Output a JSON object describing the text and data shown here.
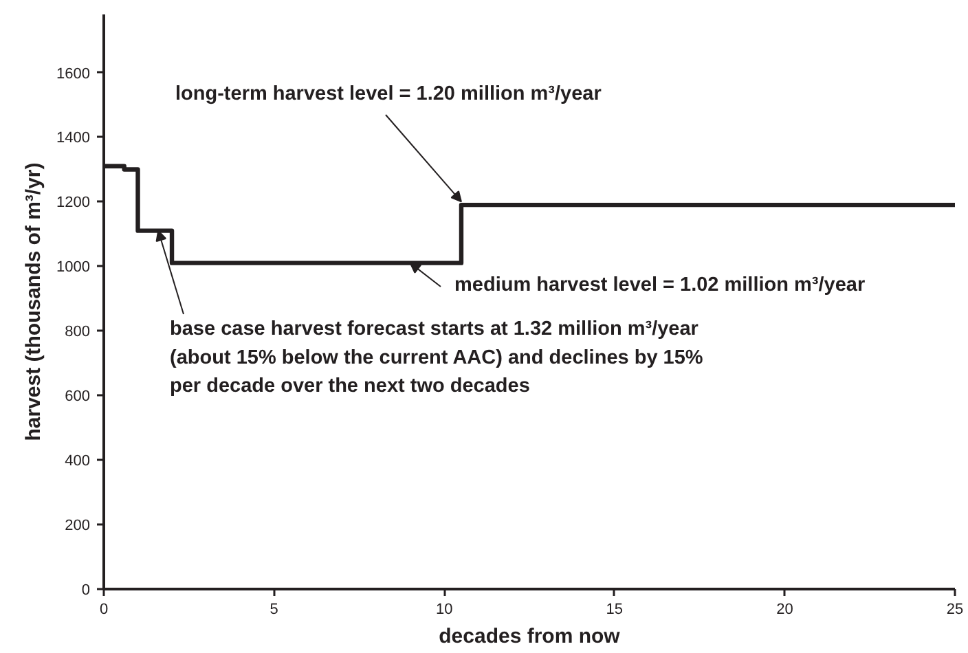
{
  "chart_data": {
    "type": "step",
    "xlabel": "decades from now",
    "ylabel": "harvest (thousands of m³/yr)",
    "x": [
      0,
      0.6,
      1,
      2,
      10.5,
      25
    ],
    "series": [
      {
        "color": "#231f20",
        "values": [
          1310,
          1300,
          1110,
          1010,
          1190,
          1190
        ]
      }
    ],
    "xlim": [
      0,
      25
    ],
    "ylim": [
      0,
      1780
    ],
    "xticks": [
      0,
      5,
      10,
      15,
      20,
      25
    ],
    "yticks": [
      0,
      200,
      400,
      600,
      800,
      1000,
      1200,
      1400,
      1600
    ],
    "grid": false,
    "marker": "none",
    "line_style": "solid",
    "annotations": [
      {
        "text": "long-term harvest level = 1.20 million m³/year",
        "x": 10.5,
        "y": 1200
      },
      {
        "text": "medium harvest level = 1.02 million m³/year",
        "x": 9,
        "y": 1010
      },
      {
        "text": "base case harvest forecast starts at 1.32 million m³/year\n(about 15% below the current AAC) and declines by 15%\nper decade over the next two decades",
        "x": 1.6,
        "y": 1110
      }
    ]
  }
}
